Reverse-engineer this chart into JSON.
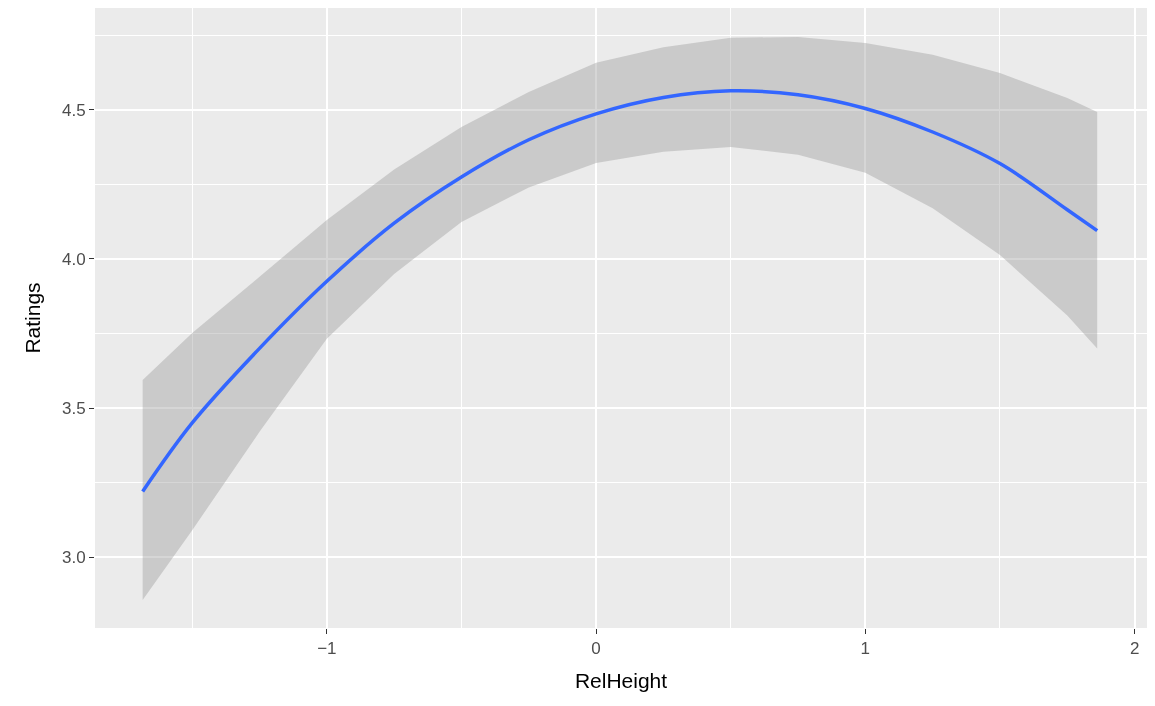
{
  "chart_data": {
    "type": "line",
    "xlabel": "RelHeight",
    "ylabel": "Ratings",
    "x": [
      -1.684,
      -1.5,
      -1.25,
      -1,
      -0.75,
      -0.5,
      -0.25,
      0,
      0.25,
      0.5,
      0.75,
      1,
      1.25,
      1.5,
      1.75,
      1.861
    ],
    "series": [
      {
        "color": "#3366ff",
        "values": [
          3.22,
          3.45,
          3.7,
          3.925,
          4.12,
          4.275,
          4.4,
          4.487,
          4.542,
          4.564,
          4.551,
          4.505,
          4.426,
          4.32,
          4.165,
          4.095
        ],
        "lower": [
          2.856,
          3.09,
          3.42,
          3.732,
          3.95,
          4.124,
          4.24,
          4.322,
          4.36,
          4.376,
          4.35,
          4.289,
          4.17,
          4.013,
          3.81,
          3.7
        ],
        "upper": [
          3.594,
          3.752,
          3.94,
          4.131,
          4.3,
          4.443,
          4.56,
          4.658,
          4.71,
          4.742,
          4.745,
          4.725,
          4.685,
          4.624,
          4.54,
          4.493
        ]
      }
    ],
    "xlim": [
      -1.861,
      2.046
    ],
    "ylim": [
      2.762,
      4.842
    ],
    "xticks": [
      {
        "value": -1,
        "label": "−1"
      },
      0,
      1,
      2
    ],
    "yticks": [
      {
        "value": 3,
        "label": "3.0"
      },
      3.5,
      {
        "value": 4,
        "label": "4.0"
      },
      4.5
    ],
    "grid": true
  }
}
